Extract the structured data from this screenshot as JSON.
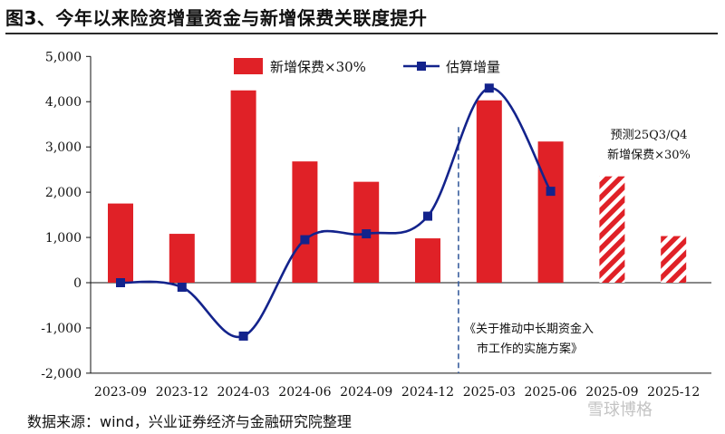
{
  "title": "图3、今年以来险资增量资金与新增保费关联度提升",
  "source": "数据来源：wind，兴业证券经济与金融研究院整理",
  "watermark": "雪球博格",
  "colors": {
    "bar": "#e02127",
    "line": "#13238c",
    "axis": "#111111",
    "divider": "#3a5f9e"
  },
  "chart_data": {
    "type": "bar",
    "categories": [
      "2023-09",
      "2023-12",
      "2024-03",
      "2024-06",
      "2024-09",
      "2024-12",
      "2025-03",
      "2025-06",
      "2025-09",
      "2025-12"
    ],
    "y_ticks": [
      -2000,
      -1000,
      0,
      1000,
      2000,
      3000,
      4000,
      5000
    ],
    "y_tick_labels": [
      "-2,000",
      "-1,000",
      "0",
      "1,000",
      "2,000",
      "3,000",
      "4,000",
      "5,000"
    ],
    "ylim": [
      -2000,
      5000
    ],
    "series": [
      {
        "name": "新增保费×30%",
        "type": "bar",
        "values": [
          1750,
          1080,
          4250,
          2680,
          2230,
          980,
          4030,
          3120,
          2350,
          1030
        ],
        "forecast_from_index": 8
      },
      {
        "name": "估算增量",
        "type": "line",
        "values": [
          0,
          -100,
          -1180,
          950,
          1080,
          1470,
          4300,
          2020,
          null,
          null
        ]
      }
    ],
    "legend_position": "top",
    "annotations": [
      {
        "lines": [
          "预测25Q3/Q4",
          "新增保费×30%"
        ]
      },
      {
        "lines": [
          "《关于推动中长期资金入",
          "市工作的实施方案》"
        ]
      }
    ],
    "grid": false
  }
}
